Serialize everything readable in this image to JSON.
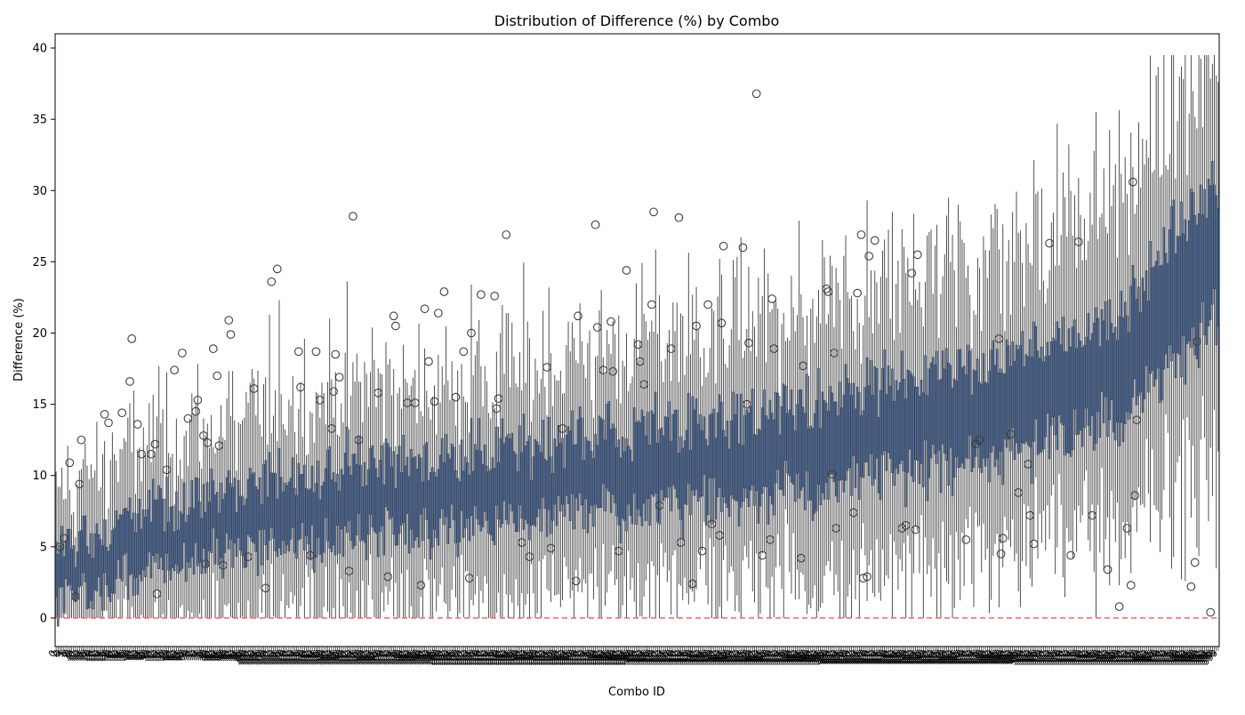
{
  "chart_data": {
    "type": "box",
    "title": "Distribution of Difference (%) by Combo",
    "xlabel": "Combo ID",
    "ylabel": "Difference (%)",
    "ylim": [
      -2,
      41
    ],
    "yticks": [
      0,
      5,
      10,
      15,
      20,
      25,
      30,
      35,
      40
    ],
    "reference_line": {
      "y": 0,
      "color": "#ff6b6b",
      "style": "dashed"
    },
    "box_color": "#4c72b0",
    "line_color": "#3d3d3d",
    "grid": false,
    "n_combos": 600,
    "median_trend": [
      {
        "x": 0,
        "y": 2.8
      },
      {
        "x": 50,
        "y": 5.5
      },
      {
        "x": 100,
        "y": 7.0
      },
      {
        "x": 150,
        "y": 8.0
      },
      {
        "x": 200,
        "y": 8.8
      },
      {
        "x": 250,
        "y": 9.6
      },
      {
        "x": 300,
        "y": 10.4
      },
      {
        "x": 350,
        "y": 11.2
      },
      {
        "x": 400,
        "y": 12.2
      },
      {
        "x": 450,
        "y": 13.6
      },
      {
        "x": 500,
        "y": 15.2
      },
      {
        "x": 550,
        "y": 18.0
      },
      {
        "x": 599,
        "y": 26.0
      }
    ],
    "outliers": [
      {
        "x": 2,
        "y": 5.0
      },
      {
        "x": 4,
        "y": 5.6
      },
      {
        "x": 7,
        "y": 10.9
      },
      {
        "x": 10,
        "y": 1.5
      },
      {
        "x": 12,
        "y": 9.4
      },
      {
        "x": 13,
        "y": 12.5
      },
      {
        "x": 25,
        "y": 14.3
      },
      {
        "x": 27,
        "y": 13.7
      },
      {
        "x": 34,
        "y": 14.4
      },
      {
        "x": 38,
        "y": 16.6
      },
      {
        "x": 39,
        "y": 19.6
      },
      {
        "x": 42,
        "y": 13.6
      },
      {
        "x": 44,
        "y": 11.5
      },
      {
        "x": 49,
        "y": 11.5
      },
      {
        "x": 51,
        "y": 12.2
      },
      {
        "x": 52,
        "y": 1.7
      },
      {
        "x": 57,
        "y": 10.4
      },
      {
        "x": 61,
        "y": 17.4
      },
      {
        "x": 65,
        "y": 18.6
      },
      {
        "x": 68,
        "y": 14.0
      },
      {
        "x": 72,
        "y": 14.5
      },
      {
        "x": 73,
        "y": 15.3
      },
      {
        "x": 76,
        "y": 12.8
      },
      {
        "x": 78,
        "y": 12.3
      },
      {
        "x": 77,
        "y": 3.8
      },
      {
        "x": 81,
        "y": 18.9
      },
      {
        "x": 83,
        "y": 17.0
      },
      {
        "x": 84,
        "y": 12.1
      },
      {
        "x": 86,
        "y": 3.7
      },
      {
        "x": 89,
        "y": 20.9
      },
      {
        "x": 90,
        "y": 19.9
      },
      {
        "x": 99,
        "y": 4.3
      },
      {
        "x": 102,
        "y": 16.1
      },
      {
        "x": 108,
        "y": 2.1
      },
      {
        "x": 111,
        "y": 23.6
      },
      {
        "x": 114,
        "y": 24.5
      },
      {
        "x": 125,
        "y": 18.7
      },
      {
        "x": 126,
        "y": 16.2
      },
      {
        "x": 131,
        "y": 4.4
      },
      {
        "x": 134,
        "y": 18.7
      },
      {
        "x": 136,
        "y": 15.3
      },
      {
        "x": 142,
        "y": 13.3
      },
      {
        "x": 143,
        "y": 15.9
      },
      {
        "x": 144,
        "y": 18.5
      },
      {
        "x": 146,
        "y": 16.9
      },
      {
        "x": 151,
        "y": 3.3
      },
      {
        "x": 153,
        "y": 28.2
      },
      {
        "x": 156,
        "y": 12.5
      },
      {
        "x": 166,
        "y": 15.8
      },
      {
        "x": 171,
        "y": 2.9
      },
      {
        "x": 174,
        "y": 21.2
      },
      {
        "x": 175,
        "y": 20.5
      },
      {
        "x": 181,
        "y": 15.1
      },
      {
        "x": 185,
        "y": 15.1
      },
      {
        "x": 188,
        "y": 2.3
      },
      {
        "x": 190,
        "y": 21.7
      },
      {
        "x": 192,
        "y": 18.0
      },
      {
        "x": 195,
        "y": 15.2
      },
      {
        "x": 197,
        "y": 21.4
      },
      {
        "x": 200,
        "y": 22.9
      },
      {
        "x": 206,
        "y": 15.5
      },
      {
        "x": 210,
        "y": 18.7
      },
      {
        "x": 213,
        "y": 2.8
      },
      {
        "x": 214,
        "y": 20.0
      },
      {
        "x": 219,
        "y": 22.7
      },
      {
        "x": 226,
        "y": 22.6
      },
      {
        "x": 227,
        "y": 14.7
      },
      {
        "x": 228,
        "y": 15.4
      },
      {
        "x": 232,
        "y": 26.9
      },
      {
        "x": 240,
        "y": 5.3
      },
      {
        "x": 244,
        "y": 4.3
      },
      {
        "x": 253,
        "y": 17.6
      },
      {
        "x": 255,
        "y": 4.9
      },
      {
        "x": 261,
        "y": 13.3
      },
      {
        "x": 268,
        "y": 2.6
      },
      {
        "x": 269,
        "y": 21.2
      },
      {
        "x": 278,
        "y": 27.6
      },
      {
        "x": 279,
        "y": 20.4
      },
      {
        "x": 282,
        "y": 17.4
      },
      {
        "x": 286,
        "y": 20.8
      },
      {
        "x": 287,
        "y": 17.3
      },
      {
        "x": 290,
        "y": 4.7
      },
      {
        "x": 294,
        "y": 24.4
      },
      {
        "x": 300,
        "y": 19.2
      },
      {
        "x": 301,
        "y": 18.0
      },
      {
        "x": 303,
        "y": 16.4
      },
      {
        "x": 307,
        "y": 22.0
      },
      {
        "x": 308,
        "y": 28.5
      },
      {
        "x": 311,
        "y": 7.9
      },
      {
        "x": 317,
        "y": 18.9
      },
      {
        "x": 321,
        "y": 28.1
      },
      {
        "x": 322,
        "y": 5.3
      },
      {
        "x": 328,
        "y": 2.4
      },
      {
        "x": 330,
        "y": 20.5
      },
      {
        "x": 333,
        "y": 4.7
      },
      {
        "x": 336,
        "y": 22.0
      },
      {
        "x": 338,
        "y": 6.6
      },
      {
        "x": 342,
        "y": 5.8
      },
      {
        "x": 343,
        "y": 20.7
      },
      {
        "x": 344,
        "y": 26.1
      },
      {
        "x": 354,
        "y": 26.0
      },
      {
        "x": 356,
        "y": 15.0
      },
      {
        "x": 357,
        "y": 19.3
      },
      {
        "x": 361,
        "y": 36.8
      },
      {
        "x": 364,
        "y": 4.4
      },
      {
        "x": 368,
        "y": 5.5
      },
      {
        "x": 369,
        "y": 22.4
      },
      {
        "x": 370,
        "y": 18.9
      },
      {
        "x": 384,
        "y": 4.2
      },
      {
        "x": 385,
        "y": 17.7
      },
      {
        "x": 397,
        "y": 23.1
      },
      {
        "x": 398,
        "y": 22.9
      },
      {
        "x": 400,
        "y": 10.1
      },
      {
        "x": 401,
        "y": 18.6
      },
      {
        "x": 402,
        "y": 6.3
      },
      {
        "x": 411,
        "y": 7.4
      },
      {
        "x": 413,
        "y": 22.8
      },
      {
        "x": 415,
        "y": 26.9
      },
      {
        "x": 416,
        "y": 2.8
      },
      {
        "x": 418,
        "y": 2.9
      },
      {
        "x": 419,
        "y": 25.4
      },
      {
        "x": 422,
        "y": 26.5
      },
      {
        "x": 436,
        "y": 6.3
      },
      {
        "x": 438,
        "y": 6.5
      },
      {
        "x": 441,
        "y": 24.2
      },
      {
        "x": 443,
        "y": 6.2
      },
      {
        "x": 444,
        "y": 25.5
      },
      {
        "x": 469,
        "y": 5.5
      },
      {
        "x": 474,
        "y": 12.2
      },
      {
        "x": 476,
        "y": 12.5
      },
      {
        "x": 486,
        "y": 19.6
      },
      {
        "x": 487,
        "y": 4.5
      },
      {
        "x": 488,
        "y": 5.6
      },
      {
        "x": 492,
        "y": 12.9
      },
      {
        "x": 496,
        "y": 8.8
      },
      {
        "x": 501,
        "y": 10.8
      },
      {
        "x": 502,
        "y": 7.2
      },
      {
        "x": 504,
        "y": 5.2
      },
      {
        "x": 512,
        "y": 26.3
      },
      {
        "x": 523,
        "y": 4.4
      },
      {
        "x": 527,
        "y": 26.4
      },
      {
        "x": 534,
        "y": 7.2
      },
      {
        "x": 542,
        "y": 3.4
      },
      {
        "x": 548,
        "y": 0.8
      },
      {
        "x": 552,
        "y": 6.3
      },
      {
        "x": 554,
        "y": 2.3
      },
      {
        "x": 555,
        "y": 30.6
      },
      {
        "x": 556,
        "y": 8.6
      },
      {
        "x": 557,
        "y": 13.9
      },
      {
        "x": 585,
        "y": 2.2
      },
      {
        "x": 587,
        "y": 3.9
      },
      {
        "x": 588,
        "y": 19.4
      },
      {
        "x": 595,
        "y": 0.4
      }
    ]
  }
}
